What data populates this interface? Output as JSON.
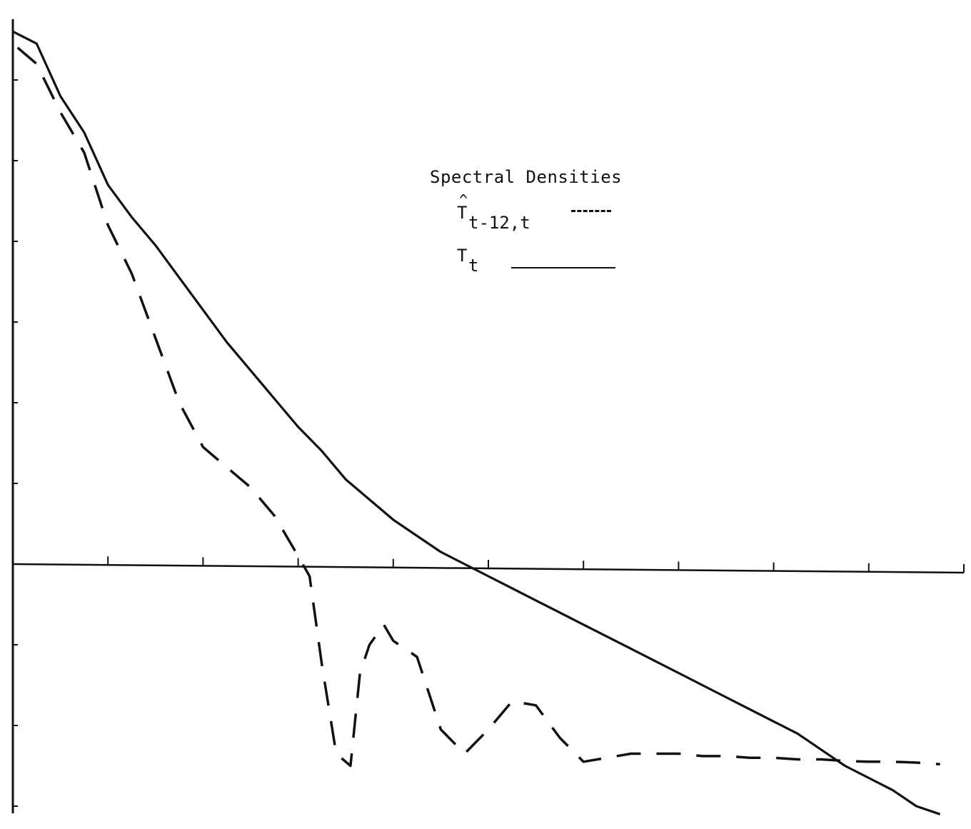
{
  "chart_data": {
    "type": "line",
    "title": "",
    "xlabel": "",
    "ylabel": "",
    "xlim": [
      0,
      10
    ],
    "ylim": [
      -3,
      6.7
    ],
    "x_ticks": [
      1,
      2,
      3,
      4,
      5,
      6,
      7,
      8,
      9,
      10
    ],
    "y_ticks": [
      -3,
      -2,
      -1,
      1,
      2,
      3,
      4,
      5,
      6
    ],
    "grid": false,
    "legend": {
      "title": "Spectral Densities",
      "placement": "center-right"
    },
    "series": [
      {
        "key": "forecast",
        "name_main": "T",
        "name_hat": "^",
        "name_sub": "t-12,t",
        "style": "dashed",
        "color": "#111111",
        "x": [
          0.05,
          0.25,
          0.5,
          0.75,
          1.0,
          1.25,
          1.5,
          1.75,
          2.0,
          2.25,
          2.5,
          2.75,
          3.0,
          3.12,
          3.25,
          3.4,
          3.55,
          3.65,
          3.75,
          3.9,
          4.0,
          4.25,
          4.5,
          4.75,
          5.0,
          5.25,
          5.5,
          5.75,
          6.0,
          6.25,
          6.5,
          6.75,
          7.0,
          7.25,
          7.5,
          7.75,
          8.0,
          8.25,
          8.5,
          8.75,
          9.0,
          9.25,
          9.5,
          9.75
        ],
        "values": [
          6.4,
          6.2,
          5.6,
          5.1,
          4.2,
          3.6,
          2.8,
          2.0,
          1.45,
          1.2,
          0.95,
          0.6,
          0.1,
          -0.15,
          -1.25,
          -2.35,
          -2.5,
          -1.35,
          -1.0,
          -0.75,
          -0.95,
          -1.15,
          -2.05,
          -2.35,
          -2.05,
          -1.7,
          -1.75,
          -2.15,
          -2.45,
          -2.4,
          -2.35,
          -2.35,
          -2.35,
          -2.38,
          -2.38,
          -2.4,
          -2.4,
          -2.42,
          -2.42,
          -2.44,
          -2.45,
          -2.45,
          -2.46,
          -2.48
        ]
      },
      {
        "key": "actual",
        "name_main": "T",
        "name_sub": "t",
        "style": "solid",
        "color": "#111111",
        "x": [
          0.0,
          0.25,
          0.5,
          0.75,
          1.0,
          1.25,
          1.5,
          1.75,
          2.0,
          2.25,
          2.5,
          2.75,
          3.0,
          3.25,
          3.5,
          3.75,
          4.0,
          4.25,
          4.5,
          4.75,
          5.0,
          5.25,
          5.5,
          5.75,
          6.0,
          6.25,
          6.5,
          6.75,
          7.0,
          7.25,
          7.5,
          7.75,
          8.0,
          8.25,
          8.5,
          8.75,
          9.0,
          9.25,
          9.5,
          9.75
        ],
        "values": [
          6.6,
          6.45,
          5.8,
          5.35,
          4.7,
          4.3,
          3.95,
          3.55,
          3.15,
          2.75,
          2.4,
          2.05,
          1.7,
          1.4,
          1.05,
          0.8,
          0.55,
          0.35,
          0.15,
          0.0,
          -0.15,
          -0.3,
          -0.45,
          -0.6,
          -0.75,
          -0.9,
          -1.05,
          -1.2,
          -1.35,
          -1.5,
          -1.65,
          -1.8,
          -1.95,
          -2.1,
          -2.3,
          -2.5,
          -2.65,
          -2.8,
          -3.0,
          -3.1
        ]
      }
    ]
  }
}
